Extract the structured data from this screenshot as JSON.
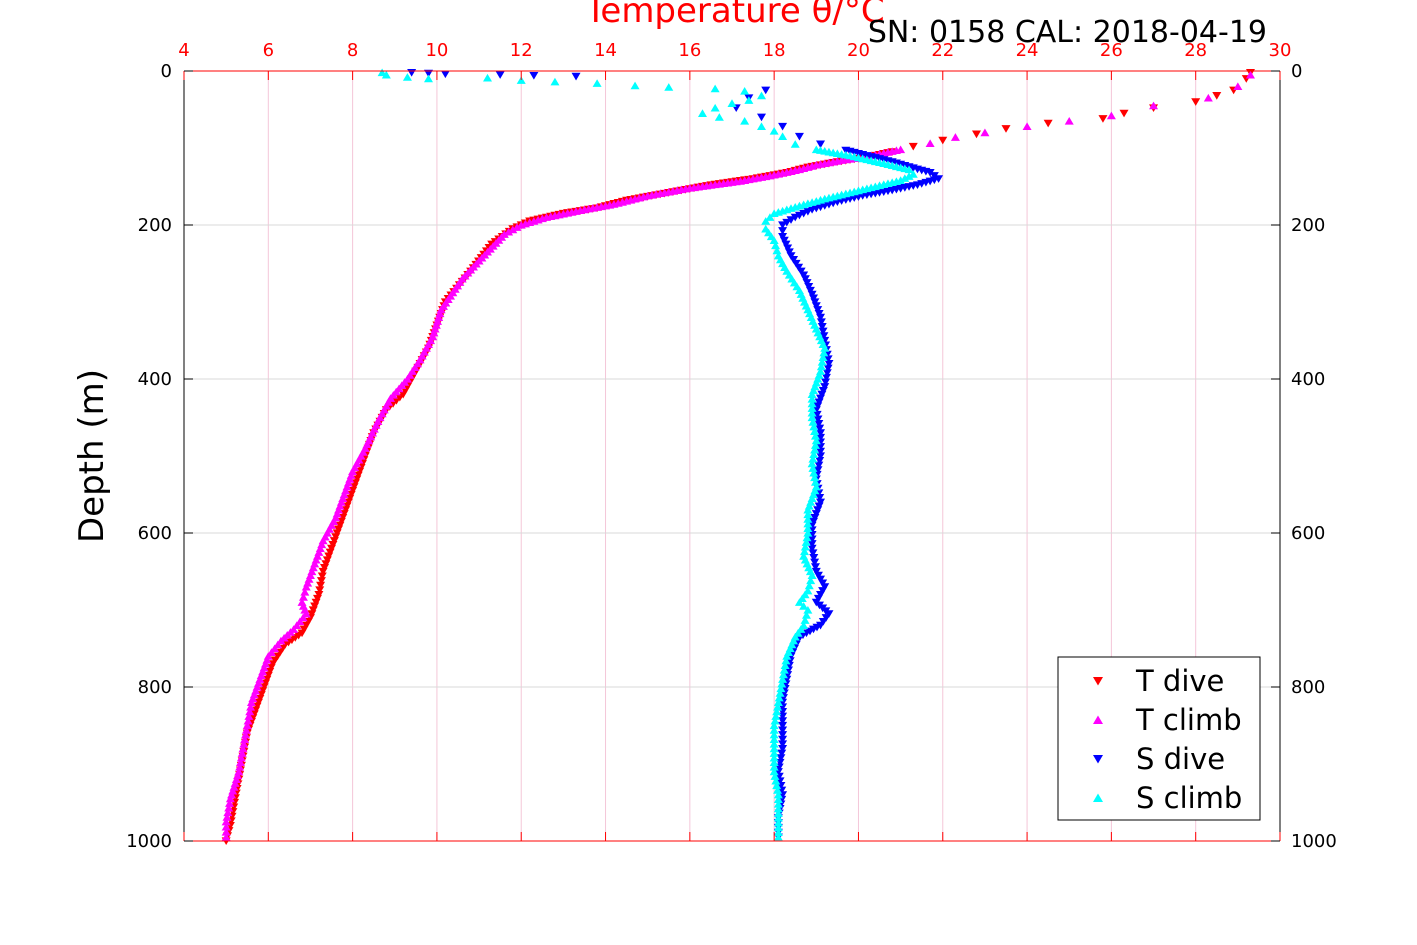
{
  "figure": {
    "title": "Temperature θ/°C",
    "annotation": "SN: 0158  CAL: 2018-04-19"
  },
  "chart_data": {
    "type": "scatter",
    "title": "Temperature θ/°C",
    "annotation": "SN: 0158  CAL: 2018-04-19",
    "xlabel": "Temperature θ/°C",
    "ylabel": "Depth (m)",
    "xlim": [
      4,
      30
    ],
    "ylim": [
      0,
      1000
    ],
    "y_reversed": true,
    "x_ticks": [
      "4",
      "6",
      "8",
      "10",
      "12",
      "14",
      "16",
      "18",
      "20",
      "22",
      "24",
      "26",
      "28",
      "30"
    ],
    "y_ticks": [
      "0",
      "200",
      "400",
      "600",
      "800",
      "1000"
    ],
    "grid": true,
    "legend_position": "bottom-right",
    "series": [
      {
        "name": "T dive",
        "marker": "triangle-down",
        "color": "#ff0000",
        "points": [
          [
            29.3,
            2
          ],
          [
            29.2,
            10
          ],
          [
            28.9,
            25
          ],
          [
            28.5,
            32
          ],
          [
            28.0,
            40
          ],
          [
            27.0,
            48
          ],
          [
            26.3,
            55
          ],
          [
            25.8,
            62
          ],
          [
            24.5,
            68
          ],
          [
            23.5,
            75
          ],
          [
            22.8,
            82
          ],
          [
            22.0,
            90
          ],
          [
            21.3,
            98
          ],
          [
            20.8,
            105
          ],
          [
            20.2,
            112
          ],
          [
            19.5,
            118
          ],
          [
            18.8,
            125
          ],
          [
            18.3,
            132
          ],
          [
            17.5,
            140
          ],
          [
            16.5,
            148
          ],
          [
            15.5,
            158
          ],
          [
            14.5,
            168
          ],
          [
            13.8,
            178
          ],
          [
            13.0,
            185
          ],
          [
            12.2,
            195
          ],
          [
            11.8,
            205
          ],
          [
            11.3,
            225
          ],
          [
            10.8,
            260
          ],
          [
            10.2,
            300
          ],
          [
            10.0,
            330
          ],
          [
            9.8,
            360
          ],
          [
            9.6,
            380
          ],
          [
            9.4,
            400
          ],
          [
            9.2,
            420
          ],
          [
            8.8,
            440
          ],
          [
            8.5,
            470
          ],
          [
            8.3,
            500
          ],
          [
            8.1,
            530
          ],
          [
            7.9,
            560
          ],
          [
            7.7,
            590
          ],
          [
            7.5,
            620
          ],
          [
            7.3,
            650
          ],
          [
            7.2,
            680
          ],
          [
            7.0,
            710
          ],
          [
            6.8,
            730
          ],
          [
            6.4,
            745
          ],
          [
            6.1,
            770
          ],
          [
            5.9,
            800
          ],
          [
            5.7,
            830
          ],
          [
            5.5,
            860
          ],
          [
            5.4,
            890
          ],
          [
            5.3,
            920
          ],
          [
            5.2,
            950
          ],
          [
            5.1,
            980
          ],
          [
            5.0,
            1000
          ]
        ]
      },
      {
        "name": "T climb",
        "marker": "triangle-up",
        "color": "#ff00ff",
        "points": [
          [
            29.3,
            5
          ],
          [
            29.0,
            20
          ],
          [
            28.3,
            35
          ],
          [
            27.0,
            45
          ],
          [
            26.0,
            58
          ],
          [
            25.0,
            65
          ],
          [
            24.0,
            72
          ],
          [
            23.0,
            80
          ],
          [
            22.3,
            86
          ],
          [
            21.7,
            94
          ],
          [
            21.0,
            102
          ],
          [
            20.3,
            110
          ],
          [
            19.6,
            116
          ],
          [
            19.0,
            122
          ],
          [
            18.6,
            128
          ],
          [
            18.0,
            135
          ],
          [
            17.2,
            143
          ],
          [
            16.0,
            152
          ],
          [
            15.0,
            162
          ],
          [
            14.2,
            173
          ],
          [
            13.5,
            180
          ],
          [
            12.6,
            190
          ],
          [
            12.0,
            200
          ],
          [
            11.6,
            212
          ],
          [
            11.2,
            235
          ],
          [
            10.6,
            270
          ],
          [
            10.1,
            310
          ],
          [
            9.9,
            345
          ],
          [
            9.6,
            375
          ],
          [
            9.3,
            400
          ],
          [
            8.9,
            425
          ],
          [
            8.6,
            455
          ],
          [
            8.3,
            490
          ],
          [
            8.0,
            520
          ],
          [
            7.8,
            550
          ],
          [
            7.6,
            580
          ],
          [
            7.3,
            610
          ],
          [
            7.1,
            640
          ],
          [
            6.9,
            670
          ],
          [
            6.8,
            690
          ],
          [
            6.9,
            705
          ],
          [
            6.6,
            725
          ],
          [
            6.3,
            740
          ],
          [
            6.0,
            760
          ],
          [
            5.8,
            790
          ],
          [
            5.6,
            820
          ],
          [
            5.5,
            850
          ],
          [
            5.4,
            880
          ],
          [
            5.3,
            910
          ],
          [
            5.1,
            945
          ],
          [
            5.0,
            975
          ],
          [
            5.0,
            995
          ]
        ]
      },
      {
        "name": "S dive",
        "marker": "triangle-down",
        "color": "#0000ff",
        "points": [
          [
            9.4,
            2
          ],
          [
            9.8,
            3
          ],
          [
            10.2,
            4
          ],
          [
            11.5,
            5
          ],
          [
            12.3,
            6
          ],
          [
            13.3,
            7
          ],
          [
            17.8,
            25
          ],
          [
            17.4,
            35
          ],
          [
            17.1,
            48
          ],
          [
            17.7,
            60
          ],
          [
            18.2,
            72
          ],
          [
            18.6,
            85
          ],
          [
            19.1,
            95
          ],
          [
            19.7,
            103
          ],
          [
            20.2,
            110
          ],
          [
            20.8,
            118
          ],
          [
            21.3,
            126
          ],
          [
            21.7,
            132
          ],
          [
            21.9,
            140
          ],
          [
            21.4,
            148
          ],
          [
            20.8,
            155
          ],
          [
            20.1,
            162
          ],
          [
            19.5,
            170
          ],
          [
            18.9,
            180
          ],
          [
            18.5,
            190
          ],
          [
            18.2,
            200
          ],
          [
            18.2,
            215
          ],
          [
            18.4,
            240
          ],
          [
            18.7,
            265
          ],
          [
            18.9,
            290
          ],
          [
            19.1,
            320
          ],
          [
            19.2,
            350
          ],
          [
            19.3,
            380
          ],
          [
            19.2,
            410
          ],
          [
            19.0,
            440
          ],
          [
            19.1,
            470
          ],
          [
            19.1,
            500
          ],
          [
            19.0,
            530
          ],
          [
            19.1,
            560
          ],
          [
            18.9,
            590
          ],
          [
            18.9,
            620
          ],
          [
            19.0,
            650
          ],
          [
            19.2,
            670
          ],
          [
            19.0,
            690
          ],
          [
            19.3,
            705
          ],
          [
            19.1,
            720
          ],
          [
            18.6,
            735
          ],
          [
            18.4,
            760
          ],
          [
            18.3,
            790
          ],
          [
            18.2,
            820
          ],
          [
            18.2,
            850
          ],
          [
            18.2,
            880
          ],
          [
            18.1,
            910
          ],
          [
            18.2,
            940
          ],
          [
            18.1,
            970
          ],
          [
            18.1,
            995
          ]
        ]
      },
      {
        "name": "S climb",
        "marker": "triangle-up",
        "color": "#00ffff",
        "points": [
          [
            8.7,
            2
          ],
          [
            8.8,
            5
          ],
          [
            9.3,
            8
          ],
          [
            9.8,
            10
          ],
          [
            11.2,
            9
          ],
          [
            12.0,
            12
          ],
          [
            12.8,
            14
          ],
          [
            13.8,
            16
          ],
          [
            14.7,
            19
          ],
          [
            15.5,
            21
          ],
          [
            16.6,
            23
          ],
          [
            17.3,
            26
          ],
          [
            17.7,
            32
          ],
          [
            17.4,
            38
          ],
          [
            17.0,
            42
          ],
          [
            16.6,
            48
          ],
          [
            16.3,
            55
          ],
          [
            16.7,
            60
          ],
          [
            17.3,
            65
          ],
          [
            17.7,
            72
          ],
          [
            18.0,
            78
          ],
          [
            18.2,
            85
          ],
          [
            18.5,
            95
          ],
          [
            19.0,
            102
          ],
          [
            19.8,
            110
          ],
          [
            20.6,
            120
          ],
          [
            21.2,
            128
          ],
          [
            21.3,
            134
          ],
          [
            21.0,
            142
          ],
          [
            20.4,
            150
          ],
          [
            19.8,
            158
          ],
          [
            19.2,
            166
          ],
          [
            18.6,
            175
          ],
          [
            18.0,
            185
          ],
          [
            17.8,
            195
          ],
          [
            17.8,
            205
          ],
          [
            18.0,
            220
          ],
          [
            18.1,
            240
          ],
          [
            18.3,
            260
          ],
          [
            18.6,
            285
          ],
          [
            18.8,
            310
          ],
          [
            19.0,
            335
          ],
          [
            19.2,
            360
          ],
          [
            19.1,
            390
          ],
          [
            18.9,
            420
          ],
          [
            18.9,
            450
          ],
          [
            19.0,
            480
          ],
          [
            18.9,
            510
          ],
          [
            19.0,
            540
          ],
          [
            18.8,
            570
          ],
          [
            18.8,
            600
          ],
          [
            18.7,
            630
          ],
          [
            18.9,
            655
          ],
          [
            18.8,
            675
          ],
          [
            18.6,
            690
          ],
          [
            18.8,
            700
          ],
          [
            18.7,
            720
          ],
          [
            18.5,
            735
          ],
          [
            18.3,
            760
          ],
          [
            18.2,
            790
          ],
          [
            18.1,
            820
          ],
          [
            18.0,
            850
          ],
          [
            18.0,
            880
          ],
          [
            18.0,
            910
          ],
          [
            18.1,
            940
          ],
          [
            18.1,
            970
          ],
          [
            18.1,
            995
          ]
        ]
      }
    ]
  }
}
